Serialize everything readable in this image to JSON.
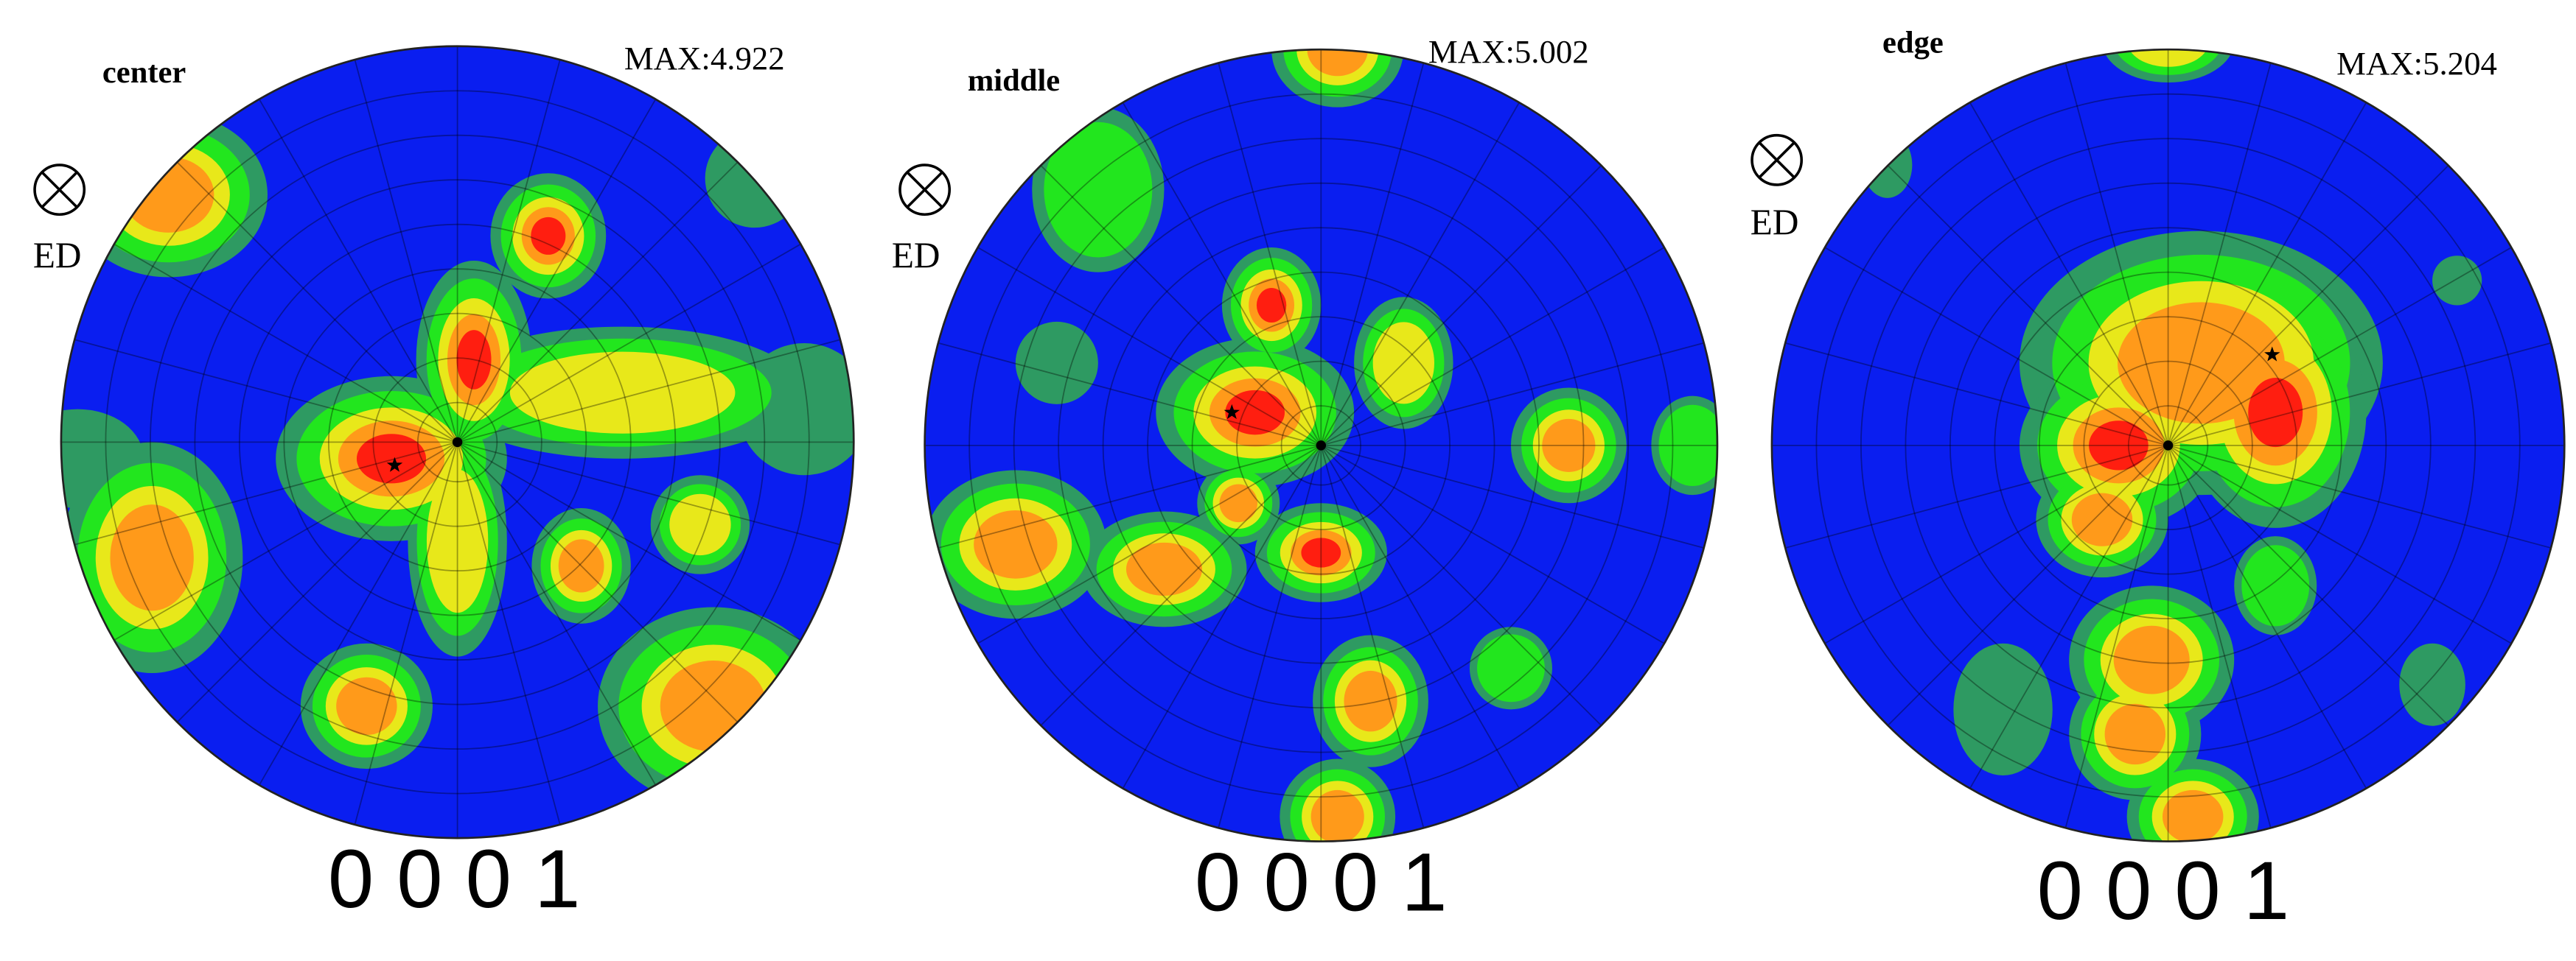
{
  "panels": [
    {
      "label": "center",
      "max": "MAX:4.922",
      "direction": "ED",
      "index": "0 0 0 1"
    },
    {
      "label": "middle",
      "max": "MAX:5.002",
      "direction": "ED",
      "index": "0 0 0 1"
    },
    {
      "label": "edge",
      "max": "MAX:5.204",
      "direction": "ED",
      "index": "0 0 0 1"
    }
  ]
}
